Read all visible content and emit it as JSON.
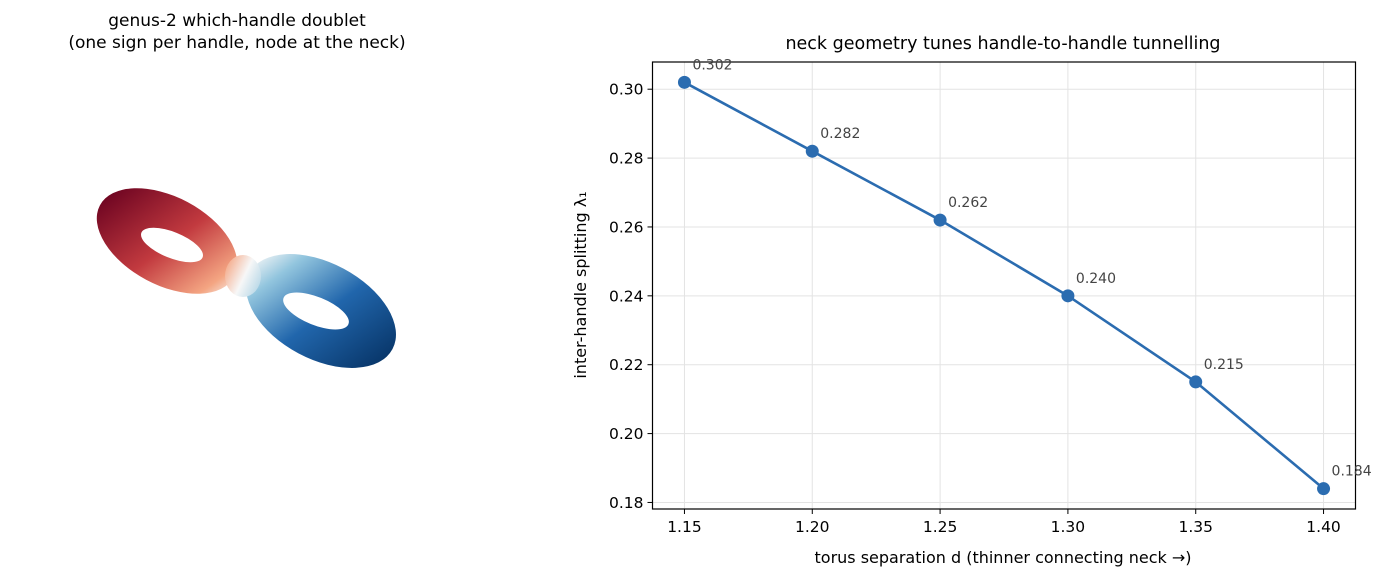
{
  "left_figure": {
    "title_line1": "genus-2 which-handle doublet",
    "title_line2": "(one sign per handle, node at the neck)",
    "colormap": {
      "negative": "#67001f",
      "zero": "#f7f7f7",
      "positive": "#053061"
    }
  },
  "chart_data": {
    "type": "line",
    "title": "neck geometry tunes handle-to-handle tunnelling",
    "xlabel": "torus separation  d  (thinner connecting neck →)",
    "ylabel": "inter-handle splitting  λ₁",
    "x": [
      1.15,
      1.2,
      1.25,
      1.3,
      1.35,
      1.4
    ],
    "y": [
      0.302,
      0.282,
      0.262,
      0.24,
      0.215,
      0.184
    ],
    "point_labels": [
      "0.302",
      "0.282",
      "0.262",
      "0.240",
      "0.215",
      "0.184"
    ],
    "xticks": [
      "1.15",
      "1.20",
      "1.25",
      "1.30",
      "1.35",
      "1.40"
    ],
    "yticks": [
      "0.18",
      "0.20",
      "0.22",
      "0.24",
      "0.26",
      "0.28",
      "0.30"
    ],
    "xlim": [
      1.1375,
      1.4125
    ],
    "ylim": [
      0.1781,
      0.3079
    ],
    "grid": true,
    "line_color": "#2b6cb0"
  }
}
